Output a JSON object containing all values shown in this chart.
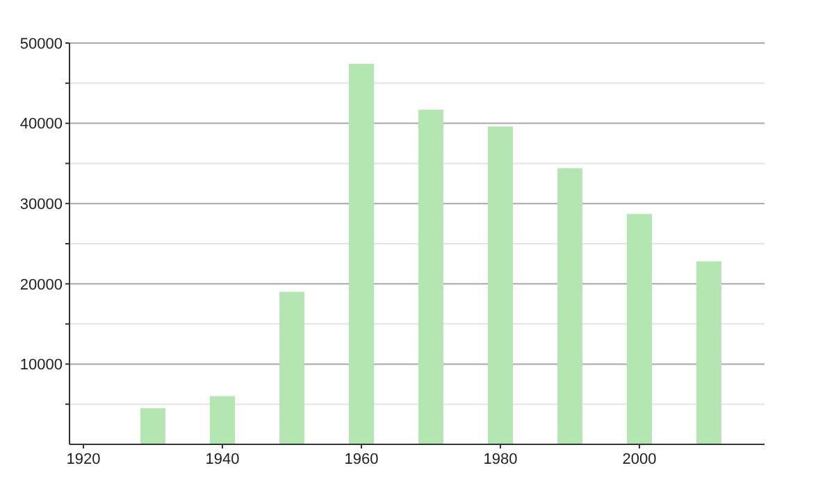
{
  "chart_data": {
    "type": "bar",
    "x": [
      1930,
      1940,
      1950,
      1960,
      1970,
      1980,
      1990,
      2000,
      2010
    ],
    "values": [
      4500,
      6000,
      19000,
      47400,
      41700,
      39600,
      34400,
      28700,
      22800
    ],
    "color": "#b3e6b0",
    "xlim": [
      1918,
      2018
    ],
    "xticks": [
      1920,
      1940,
      1960,
      1980,
      2000
    ],
    "ylim": [
      0,
      50000
    ],
    "yticks": [
      {
        "value": 5000,
        "label": null
      },
      10000,
      {
        "value": 15000,
        "label": null
      },
      20000,
      {
        "value": 25000,
        "label": null
      },
      30000,
      {
        "value": 35000,
        "label": null
      },
      40000,
      {
        "value": 45000,
        "label": null
      },
      50000
    ],
    "grid": "y"
  }
}
